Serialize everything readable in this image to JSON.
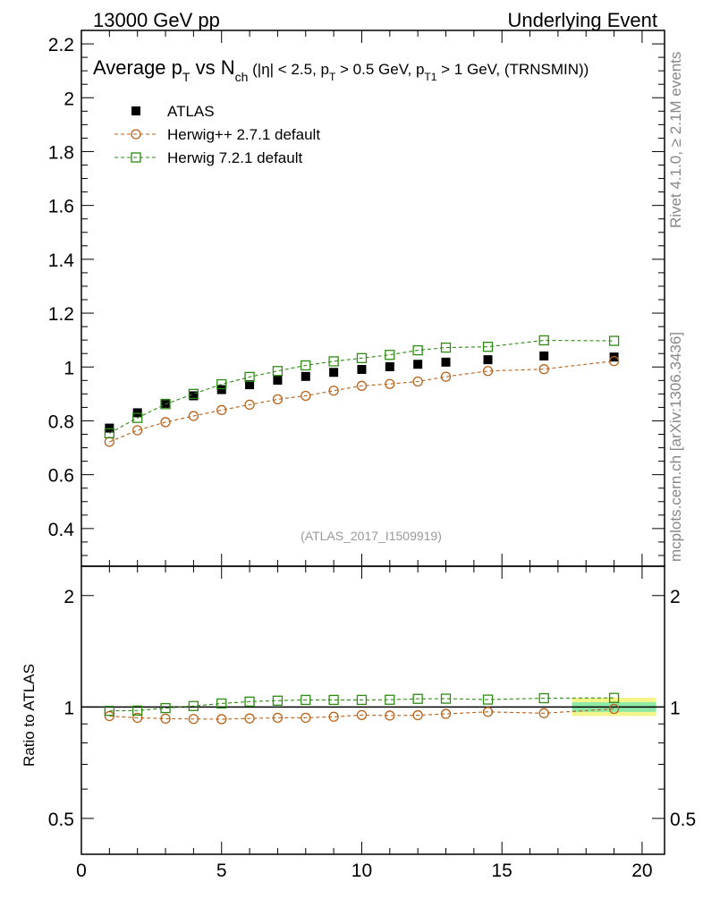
{
  "header": {
    "left": "13000 GeV pp",
    "right": "Underlying Event"
  },
  "side": {
    "rivet": "Rivet 4.1.0, ≥ 2.1M events",
    "mcplots": "mcplots.cern.ch [arXiv:1306.3436]"
  },
  "title": {
    "average": "Average p",
    "t_sub": "T",
    "vs": " vs N",
    "ch_sub": "ch",
    "part1": " (|η| < 2.5, p",
    "t_sub2": "T",
    "part2": " > 0.5 GeV, p",
    "t1_sub": "T1",
    "part3": " > 1 GeV, (TRNSMIN))"
  },
  "watermark": "(ATLAS_2017_I1509919)",
  "ratio_label": "Ratio to ATLAS",
  "chart_data": [
    {
      "type": "scatter",
      "panel": "main",
      "xlim": [
        0,
        20.8
      ],
      "ylim": [
        0.26,
        2.25
      ],
      "yticks": [
        "0.4",
        "0.6",
        "0.8",
        "1",
        "1.2",
        "1.4",
        "1.6",
        "1.8",
        "2",
        "2.2"
      ],
      "ytick_values": [
        0.4,
        0.6,
        0.8,
        1.0,
        1.2,
        1.4,
        1.6,
        1.8,
        2.0,
        2.2
      ],
      "legend_position": "top-left",
      "series": [
        {
          "name": "ATLAS",
          "color": "#000000",
          "marker": "filled-square",
          "x": [
            1,
            2,
            3,
            4,
            5,
            6,
            7,
            8,
            9,
            10,
            11,
            12,
            13,
            14.5,
            16.5,
            19
          ],
          "y": [
            0.773,
            0.83,
            0.865,
            0.893,
            0.916,
            0.934,
            0.951,
            0.965,
            0.98,
            0.991,
            1.001,
            1.01,
            1.018,
            1.027,
            1.041,
            1.037
          ]
        },
        {
          "name": "Herwig++ 2.7.1 default",
          "color": "#b8621b",
          "marker": "open-circle",
          "x": [
            1,
            2,
            3,
            4,
            5,
            6,
            7,
            8,
            9,
            10,
            11,
            12,
            13,
            14.5,
            16.5,
            19
          ],
          "y": [
            0.722,
            0.765,
            0.795,
            0.818,
            0.84,
            0.86,
            0.88,
            0.893,
            0.912,
            0.93,
            0.937,
            0.946,
            0.964,
            0.985,
            0.992,
            1.022
          ]
        },
        {
          "name": "Herwig 7.2.1 default",
          "color": "#2d8a12",
          "marker": "open-square",
          "x": [
            1,
            2,
            3,
            4,
            5,
            6,
            7,
            8,
            9,
            10,
            11,
            12,
            13,
            14.5,
            16.5,
            19
          ],
          "y": [
            0.754,
            0.811,
            0.862,
            0.9,
            0.936,
            0.963,
            0.985,
            1.006,
            1.021,
            1.033,
            1.045,
            1.062,
            1.072,
            1.075,
            1.099,
            1.097
          ]
        }
      ]
    },
    {
      "type": "scatter",
      "panel": "ratio",
      "xlim": [
        0,
        20.8
      ],
      "ylim": [
        0.4,
        2.4
      ],
      "log_y": true,
      "xticks": [
        "0",
        "5",
        "10",
        "15",
        "20"
      ],
      "xtick_values": [
        0,
        5,
        10,
        15,
        20
      ],
      "yticks": [
        "0.5",
        "1",
        "2"
      ],
      "ytick_values": [
        0.5,
        1,
        2
      ],
      "band": {
        "x": [
          17.5,
          20.5
        ],
        "inner": [
          0.97,
          1.03
        ],
        "outer": [
          0.945,
          1.06
        ]
      },
      "series": [
        {
          "name": "Herwig++ 2.7.1 default",
          "color": "#b8621b",
          "marker": "open-circle",
          "x": [
            1,
            2,
            3,
            4,
            5,
            6,
            7,
            8,
            9,
            10,
            11,
            12,
            13,
            14.5,
            16.5,
            19
          ],
          "y": [
            0.945,
            0.935,
            0.93,
            0.928,
            0.927,
            0.931,
            0.935,
            0.935,
            0.941,
            0.951,
            0.948,
            0.95,
            0.958,
            0.97,
            0.962,
            0.988
          ]
        },
        {
          "name": "Herwig 7.2.1 default",
          "color": "#2d8a12",
          "marker": "open-square",
          "x": [
            1,
            2,
            3,
            4,
            5,
            6,
            7,
            8,
            9,
            10,
            11,
            12,
            13,
            14.5,
            16.5,
            19
          ],
          "y": [
            0.976,
            0.978,
            0.993,
            1.006,
            1.022,
            1.034,
            1.04,
            1.045,
            1.045,
            1.045,
            1.046,
            1.052,
            1.053,
            1.047,
            1.056,
            1.058
          ]
        }
      ]
    }
  ]
}
